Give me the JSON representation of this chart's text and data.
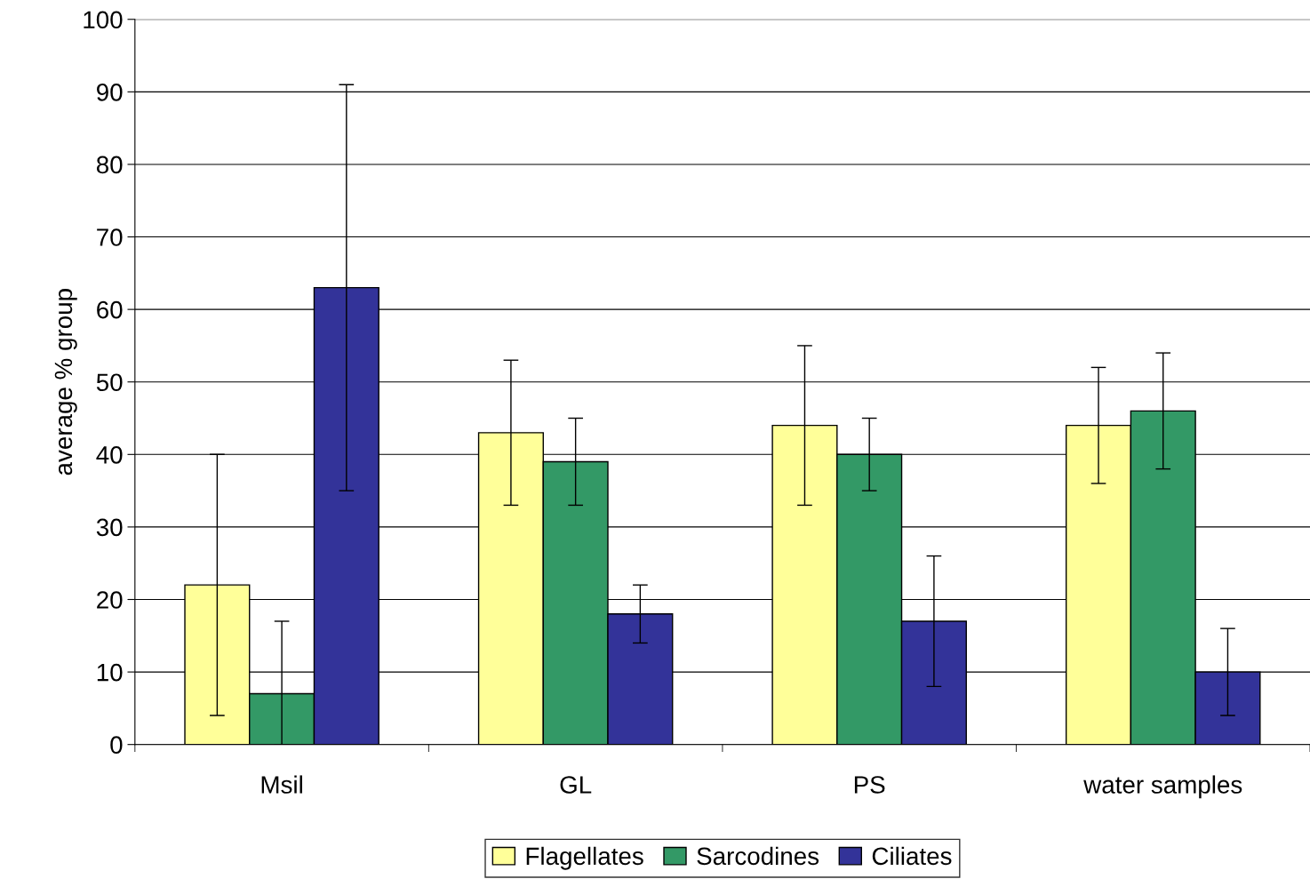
{
  "chart_data": {
    "type": "bar",
    "ylabel": "average % group",
    "categories": [
      "Msil",
      "GL",
      "PS",
      "water samples"
    ],
    "series": [
      {
        "name": "Flagellates",
        "color": "#ffff99",
        "values": [
          22,
          43,
          44,
          44
        ],
        "errors": [
          [
            4,
            40
          ],
          [
            33,
            53
          ],
          [
            33,
            55
          ],
          [
            36,
            52
          ]
        ]
      },
      {
        "name": "Sarcodines",
        "color": "#339966",
        "values": [
          7,
          39,
          40,
          46
        ],
        "errors": [
          [
            0,
            17
          ],
          [
            33,
            45
          ],
          [
            35,
            45
          ],
          [
            38,
            54
          ]
        ]
      },
      {
        "name": "Ciliates",
        "color": "#333399",
        "values": [
          63,
          18,
          17,
          10
        ],
        "errors": [
          [
            35,
            91
          ],
          [
            14,
            22
          ],
          [
            8,
            26
          ],
          [
            4,
            16
          ]
        ]
      }
    ],
    "ylim": [
      0,
      100
    ],
    "yticks": [
      0,
      10,
      20,
      30,
      40,
      50,
      60,
      70,
      80,
      90,
      100
    ],
    "grid": "y",
    "legend": "bottom"
  }
}
